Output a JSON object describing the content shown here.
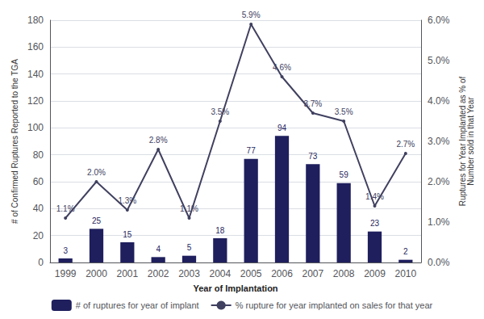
{
  "chart_data": {
    "type": "bar",
    "categories": [
      "1999",
      "2000",
      "2001",
      "2002",
      "2003",
      "2004",
      "2005",
      "2006",
      "2007",
      "2008",
      "2009",
      "2010"
    ],
    "xlabel": "Year of Implantation",
    "ylabel": "# of Confirmed Ruptures Reported to the TGA",
    "y2label": "Ruptures for Year Implanted as % of\nNumber sold in that Year",
    "ylim": [
      0,
      180
    ],
    "yticks": [
      0,
      20,
      40,
      60,
      80,
      100,
      120,
      140,
      160,
      180
    ],
    "y2lim": [
      0,
      6.0
    ],
    "y2ticks": [
      {
        "value": 0.0,
        "label": "0.0%"
      },
      {
        "value": 1.0,
        "label": "1.0%"
      },
      {
        "value": 2.0,
        "label": "2.0%"
      },
      {
        "value": 3.0,
        "label": "3.0%"
      },
      {
        "value": 4.0,
        "label": "4.0%"
      },
      {
        "value": 5.0,
        "label": "5.0%"
      },
      {
        "value": 6.0,
        "label": "6.0%"
      }
    ],
    "grid": true,
    "legend": "bottom",
    "series": [
      {
        "name": "# of ruptures for year of implant",
        "type": "bar",
        "color": "#1f1f5e",
        "values": [
          3,
          25,
          15,
          4,
          5,
          18,
          77,
          94,
          73,
          59,
          23,
          2
        ],
        "data_labels": true
      },
      {
        "name": "% rupture for year implanted on sales for that year",
        "type": "line",
        "axis": "y2",
        "color": "#404060",
        "values": [
          1.1,
          2.0,
          1.3,
          2.8,
          1.1,
          3.5,
          5.9,
          4.6,
          3.7,
          3.5,
          1.4,
          2.7
        ],
        "value_labels": [
          "1.1%",
          "2.0%",
          "1.3%",
          "2.8%",
          "1.1%",
          "3.5%",
          "5.9%",
          "4.6%",
          "3.7%",
          "3.5%",
          "1.4%",
          "2.7%"
        ],
        "data_labels": true
      }
    ]
  }
}
